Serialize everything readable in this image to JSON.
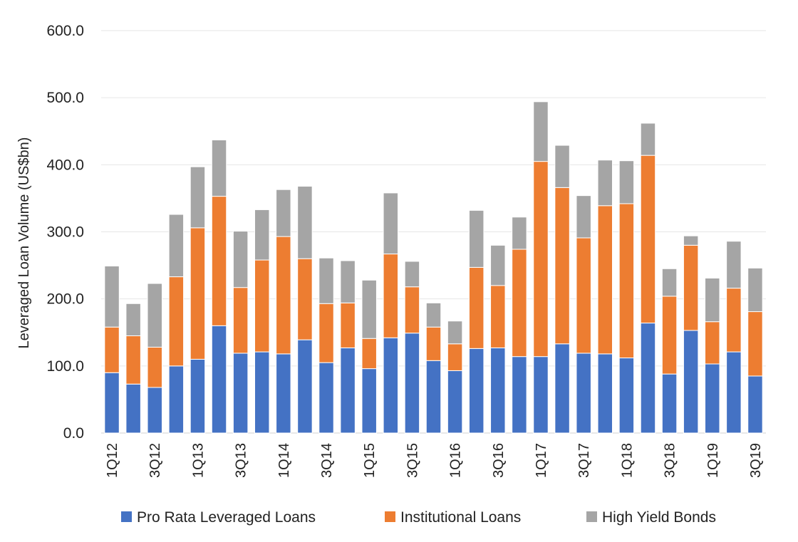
{
  "chart_data": {
    "type": "bar",
    "stacked": true,
    "ylabel": "Leveraged Loan Volume (US$bn)",
    "xlabel": "",
    "ylim": [
      0,
      600
    ],
    "yticks": [
      "0.0",
      "100.0",
      "200.0",
      "300.0",
      "400.0",
      "500.0",
      "600.0"
    ],
    "grid": true,
    "legend_position": "bottom",
    "categories": [
      "1Q12",
      "2Q12",
      "3Q12",
      "4Q12",
      "1Q13",
      "2Q13",
      "3Q13",
      "4Q13",
      "1Q14",
      "2Q14",
      "3Q14",
      "4Q14",
      "1Q15",
      "2Q15",
      "3Q15",
      "4Q15",
      "1Q16",
      "2Q16",
      "3Q16",
      "4Q16",
      "1Q17",
      "2Q17",
      "3Q17",
      "4Q17",
      "1Q18",
      "2Q18",
      "3Q18",
      "4Q18",
      "1Q19",
      "2Q19",
      "3Q19"
    ],
    "category_labels": [
      "1Q12",
      "",
      "3Q12",
      "",
      "1Q13",
      "",
      "3Q13",
      "",
      "1Q14",
      "",
      "3Q14",
      "",
      "1Q15",
      "",
      "3Q15",
      "",
      "1Q16",
      "",
      "3Q16",
      "",
      "1Q17",
      "",
      "3Q17",
      "",
      "1Q18",
      "",
      "3Q18",
      "",
      "1Q19",
      "",
      "3Q19"
    ],
    "series": [
      {
        "name": "Pro Rata Leveraged Loans",
        "color": "#4472C4",
        "values": [
          90,
          73,
          68,
          100,
          110,
          160,
          119,
          121,
          118,
          139,
          105,
          127,
          96,
          142,
          149,
          108,
          93,
          126,
          127,
          114,
          114,
          133,
          119,
          118,
          112,
          164,
          88,
          153,
          103,
          121,
          85
        ]
      },
      {
        "name": "Institutional Loans",
        "color": "#ED7D31",
        "values": [
          68,
          72,
          60,
          133,
          196,
          193,
          98,
          137,
          175,
          121,
          88,
          67,
          45,
          125,
          69,
          50,
          40,
          121,
          93,
          160,
          291,
          233,
          172,
          221,
          230,
          250,
          116,
          127,
          63,
          95,
          96
        ]
      },
      {
        "name": "High Yield Bonds",
        "color": "#A5A5A5",
        "values": [
          91,
          48,
          95,
          93,
          91,
          84,
          84,
          75,
          70,
          108,
          68,
          63,
          87,
          91,
          38,
          36,
          34,
          85,
          60,
          48,
          89,
          63,
          63,
          68,
          64,
          48,
          41,
          14,
          65,
          70,
          65
        ]
      }
    ]
  }
}
